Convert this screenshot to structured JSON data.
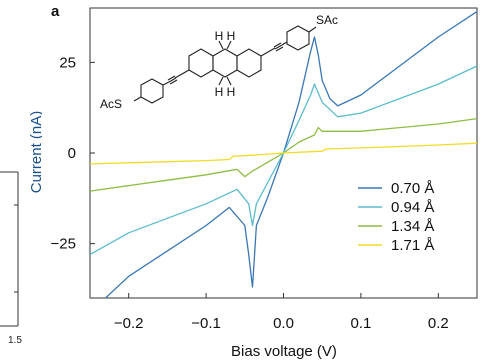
{
  "panel_label": "a",
  "chart_data": {
    "type": "line",
    "title": "",
    "xlabel": "Bias voltage (V)",
    "ylabel": "Current (nA)",
    "xlim": [
      -0.25,
      0.25
    ],
    "ylim": [
      -40,
      40
    ],
    "xticks": [
      -0.2,
      -0.1,
      0.0,
      0.1,
      0.2
    ],
    "xtick_labels": [
      "−0.2",
      "−0.1",
      "0.0",
      "0.1",
      "0.2"
    ],
    "yticks": [
      25,
      0,
      -25
    ],
    "ytick_labels": [
      "25",
      "0",
      "−25"
    ],
    "legend_position": "bottom-right",
    "series": [
      {
        "name": "0.70 Å",
        "color": "#3a77b4",
        "x": [
          -0.25,
          -0.2,
          -0.15,
          -0.1,
          -0.07,
          -0.05,
          -0.045,
          -0.04,
          -0.035,
          -0.02,
          0.0,
          0.02,
          0.035,
          0.04,
          0.045,
          0.05,
          0.06,
          0.07,
          0.1,
          0.15,
          0.2,
          0.25
        ],
        "y": [
          -44,
          -34,
          -27,
          -20,
          -15,
          -20,
          -28,
          -37,
          -20,
          -12,
          0,
          14,
          28,
          32,
          27,
          20,
          15,
          13,
          16,
          24,
          32,
          39
        ]
      },
      {
        "name": "0.94 Å",
        "color": "#5bbccc",
        "x": [
          -0.25,
          -0.2,
          -0.15,
          -0.1,
          -0.06,
          -0.045,
          -0.04,
          -0.035,
          -0.02,
          0.0,
          0.02,
          0.035,
          0.04,
          0.05,
          0.07,
          0.1,
          0.15,
          0.2,
          0.25
        ],
        "y": [
          -28,
          -22,
          -18,
          -14,
          -10,
          -14,
          -20,
          -14,
          -8,
          0,
          9,
          16,
          19,
          14,
          10,
          11,
          15,
          19,
          24
        ]
      },
      {
        "name": "1.34 Å",
        "color": "#8fbc45",
        "x": [
          -0.25,
          -0.2,
          -0.15,
          -0.1,
          -0.06,
          -0.05,
          -0.04,
          -0.02,
          0.0,
          0.02,
          0.04,
          0.045,
          0.05,
          0.1,
          0.15,
          0.2,
          0.25
        ],
        "y": [
          -10.5,
          -9,
          -7.5,
          -6,
          -4.5,
          -6.5,
          -5,
          -2.5,
          0,
          3,
          5,
          7,
          6,
          6,
          7,
          8,
          9.5
        ]
      },
      {
        "name": "1.71 Å",
        "color": "#f2dc26",
        "x": [
          -0.25,
          -0.2,
          -0.15,
          -0.1,
          -0.07,
          -0.065,
          -0.04,
          -0.02,
          0.0,
          0.05,
          0.055,
          0.1,
          0.15,
          0.2,
          0.25
        ],
        "y": [
          -3,
          -2.7,
          -2.4,
          -2.1,
          -1.8,
          -0.9,
          -0.6,
          -0.3,
          0,
          0.5,
          1.1,
          1.4,
          1.8,
          2.2,
          2.7
        ]
      }
    ]
  },
  "molecule": {
    "top_substituent": "SAc",
    "bottom_substituent": "AcS",
    "top_hydrogens": "H H",
    "bottom_hydrogens": "H H"
  },
  "left_fragment": {
    "tick_label": "1.5",
    "axis_label": "Current (nA)"
  }
}
